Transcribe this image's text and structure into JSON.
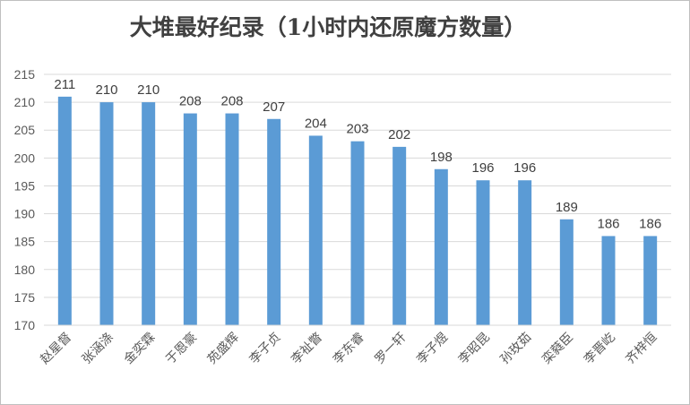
{
  "chart_data": {
    "type": "bar",
    "title": "大堆最好纪录（1小时内还原魔方数量）",
    "categories": [
      "赵星督",
      "张涵涤",
      "金奕霖",
      "于恩豪",
      "苑盛辉",
      "李子贞",
      "李祉瞥",
      "李东睿",
      "罗一轩",
      "李子煜",
      "李昭昆",
      "孙玫茹",
      "栾蕤臣",
      "李晋屹",
      "齐梓恒"
    ],
    "series": [
      {
        "values": [
          211,
          210,
          210,
          208,
          208,
          207,
          204,
          203,
          202,
          198,
          196,
          196,
          189,
          186,
          186
        ]
      }
    ],
    "ylim": [
      170,
      215
    ],
    "yticks": [
      170,
      175,
      180,
      185,
      190,
      195,
      200,
      205,
      210,
      215
    ],
    "grid": true,
    "data_labels": true,
    "legend": "none",
    "bar_color": "#5b9bd5"
  }
}
